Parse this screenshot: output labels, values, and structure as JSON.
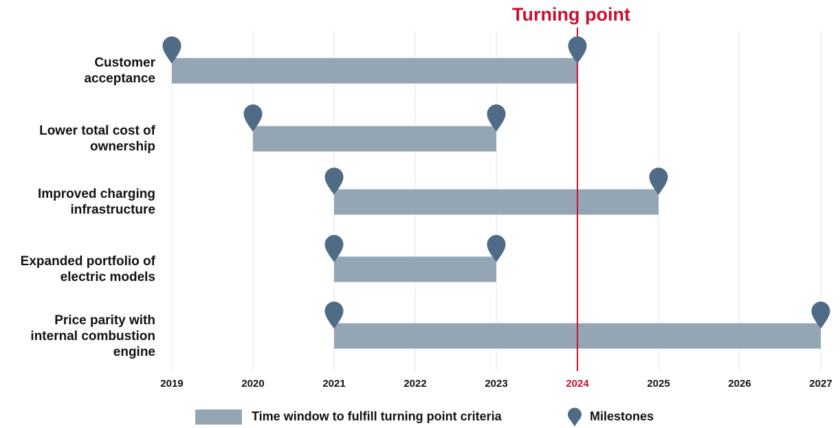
{
  "chart_data": {
    "type": "gantt",
    "title": "Turning point",
    "x_axis": {
      "ticks": [
        "2019",
        "2020",
        "2021",
        "2022",
        "2023",
        "2024",
        "2025",
        "2026",
        "2027"
      ],
      "range": [
        2019,
        2027
      ],
      "highlighted_tick": "2024"
    },
    "turning_point": 2024,
    "categories": [
      "Customer acceptance",
      "Lower total cost of ownership",
      "Improved charging infrastructure",
      "Expanded portfolio of electric models",
      "Price parity with internal combustion engine"
    ],
    "category_label_lines": [
      [
        "Customer",
        "acceptance"
      ],
      [
        "Lower total cost of",
        "ownership"
      ],
      [
        "Improved charging",
        "infrastructure"
      ],
      [
        "Expanded portfolio of",
        "electric models"
      ],
      [
        "Price parity with",
        "internal combustion",
        "engine"
      ]
    ],
    "bars": [
      {
        "category": "Customer acceptance",
        "start": 2019,
        "end": 2024
      },
      {
        "category": "Lower total cost of ownership",
        "start": 2020,
        "end": 2023
      },
      {
        "category": "Improved charging infrastructure",
        "start": 2021,
        "end": 2025
      },
      {
        "category": "Expanded portfolio of electric models",
        "start": 2021,
        "end": 2023
      },
      {
        "category": "Price parity with internal combustion engine",
        "start": 2021,
        "end": 2027
      }
    ],
    "milestones_at_bar_ends": true,
    "legend": {
      "placement": "bottom",
      "items": [
        {
          "label": "Time window to fulfill turning point criteria",
          "symbol": "bar"
        },
        {
          "label": "Milestones",
          "symbol": "pin"
        }
      ]
    },
    "grid": "vertical",
    "colors": {
      "bar": "#94a6b4",
      "pin": "#4f6b86",
      "turning_point": "#c8102e",
      "grid": "#e6e6e6",
      "text": "#111111"
    }
  }
}
